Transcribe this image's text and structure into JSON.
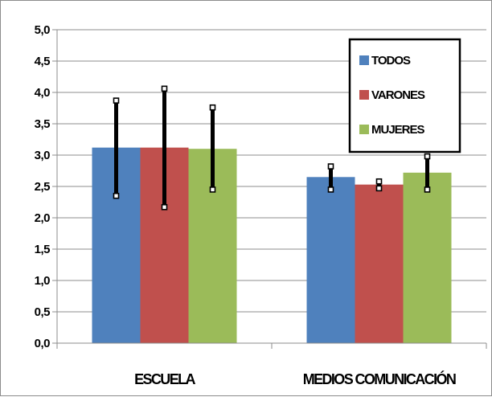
{
  "chart_data": {
    "type": "bar",
    "title": "",
    "xlabel": "",
    "ylabel": "",
    "categories": [
      "ESCUELA",
      "MEDIOS COMUNICACIÓN"
    ],
    "ylim": [
      0,
      5
    ],
    "yticks": [
      "0,0",
      "0,5",
      "1,0",
      "1,5",
      "2,0",
      "2,5",
      "3,0",
      "3,5",
      "4,0",
      "4,5",
      "5,0"
    ],
    "grid": true,
    "legend_position": "top-right",
    "series": [
      {
        "name": "TODOS",
        "color": "#4f81bd",
        "values": [
          3.12,
          2.65
        ],
        "error_low": [
          2.35,
          2.45
        ],
        "error_high": [
          3.87,
          2.82
        ]
      },
      {
        "name": "VARONES",
        "color": "#c0504d",
        "values": [
          3.12,
          2.53
        ],
        "error_low": [
          2.17,
          2.47
        ],
        "error_high": [
          4.06,
          2.58
        ]
      },
      {
        "name": "MUJERES",
        "color": "#9bbb59",
        "values": [
          3.1,
          2.72
        ],
        "error_low": [
          2.45,
          2.45
        ],
        "error_high": [
          3.76,
          2.98
        ]
      }
    ]
  }
}
